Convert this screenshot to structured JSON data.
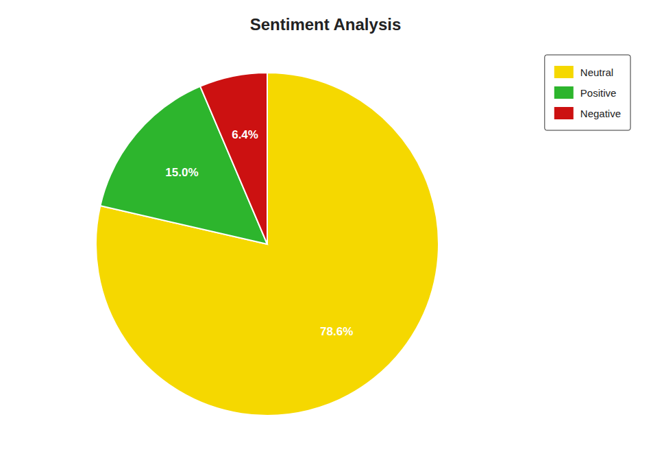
{
  "chart_data": {
    "type": "pie",
    "title": "Sentiment Analysis",
    "categories": [
      "Neutral",
      "Positive",
      "Negative"
    ],
    "values": [
      78.6,
      15.0,
      6.4
    ],
    "value_labels": [
      "78.6%",
      "15.0%",
      "6.4%"
    ],
    "colors": [
      "#f5d800",
      "#2db52d",
      "#cc1111"
    ],
    "data_labels": true,
    "legend": "upper right"
  }
}
